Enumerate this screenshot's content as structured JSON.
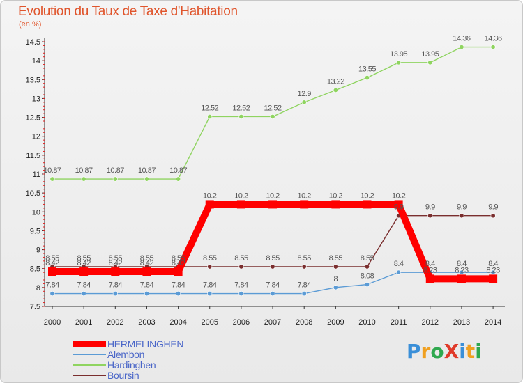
{
  "title": "Evolution du Taux de Taxe d'Habitation",
  "subtitle": "(en %)",
  "logo": {
    "text": "ProXiti",
    "colors": [
      "#3a8fd8",
      "#f0a020",
      "#2fa84f",
      "#e03a2a",
      "#3a8fd8",
      "#f0a020",
      "#2fa84f"
    ]
  },
  "chart_data": {
    "type": "line",
    "x": [
      2000,
      2001,
      2002,
      2003,
      2004,
      2005,
      2006,
      2007,
      2008,
      2009,
      2010,
      2011,
      2012,
      2013,
      2014
    ],
    "ylim": [
      7.5,
      14.5
    ],
    "yticks": [
      7.5,
      8,
      8.5,
      9,
      9.5,
      10,
      10.5,
      11,
      11.5,
      12,
      12.5,
      13,
      13.5,
      14,
      14.5
    ],
    "grid": false,
    "legend_position": "bottom-left",
    "series": [
      {
        "name": "HERMELINGHEN",
        "color": "#ff0000",
        "values": [
          8.42,
          8.42,
          8.42,
          8.42,
          8.42,
          10.2,
          10.2,
          10.2,
          10.2,
          10.2,
          10.2,
          10.2,
          8.23,
          8.23,
          8.23
        ]
      },
      {
        "name": "Alembon",
        "color": "#5b9bd5",
        "values": [
          7.84,
          7.84,
          7.84,
          7.84,
          7.84,
          7.84,
          7.84,
          7.84,
          7.84,
          8,
          8.08,
          8.4,
          8.4,
          8.4,
          8.4
        ]
      },
      {
        "name": "Hardinghen",
        "color": "#8fd460",
        "values": [
          10.87,
          10.87,
          10.87,
          10.87,
          10.87,
          12.52,
          12.52,
          12.52,
          12.9,
          13.22,
          13.55,
          13.95,
          13.95,
          14.36,
          14.36
        ]
      },
      {
        "name": "Boursin",
        "color": "#7a2e2e",
        "values": [
          8.55,
          8.55,
          8.55,
          8.55,
          8.55,
          8.55,
          8.55,
          8.55,
          8.55,
          8.55,
          8.55,
          9.9,
          9.9,
          9.9,
          9.9
        ]
      }
    ]
  }
}
